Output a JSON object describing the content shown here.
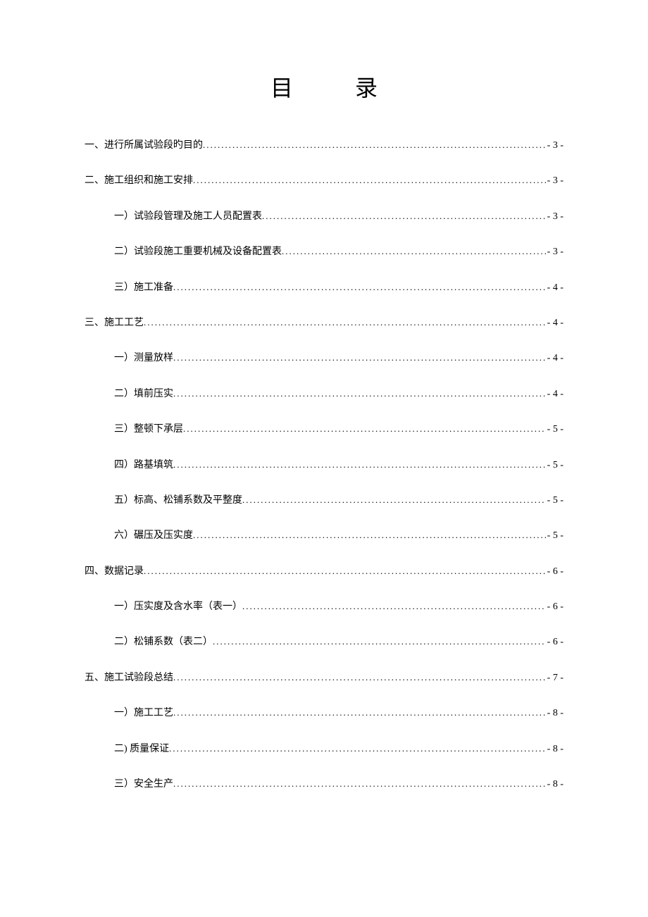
{
  "title": "目 录",
  "entries": [
    {
      "level": 1,
      "label": "一、进行所属试验段旳目的",
      "page": "- 3 -"
    },
    {
      "level": 1,
      "label": "二、施工组织和施工安排",
      "page": "- 3 -"
    },
    {
      "level": 2,
      "label": "一）试验段管理及施工人员配置表",
      "page": "- 3 -"
    },
    {
      "level": 2,
      "label": "二）试验段施工重要机械及设备配置表",
      "page": "- 3 -"
    },
    {
      "level": 2,
      "label": "三）施工准备",
      "page": "- 4 -"
    },
    {
      "level": 1,
      "label": "三、施工工艺",
      "page": "- 4 -"
    },
    {
      "level": 2,
      "label": "一）测量放样",
      "page": "- 4 -"
    },
    {
      "level": 2,
      "label": "二）填前压实",
      "page": "- 4 -"
    },
    {
      "level": 2,
      "label": "三）整顿下承层",
      "page": "- 5 -"
    },
    {
      "level": 2,
      "label": "四）路基填筑",
      "page": "- 5 -"
    },
    {
      "level": 2,
      "label": "五）标高、松铺系数及平整度",
      "page": "- 5 -"
    },
    {
      "level": 2,
      "label": "六）碾压及压实度",
      "page": "- 5 -"
    },
    {
      "level": 1,
      "label": "四、数据记录",
      "page": "- 6 -"
    },
    {
      "level": 2,
      "label": "一）压实度及含水率（表一）",
      "page": "- 6 -"
    },
    {
      "level": 2,
      "label": "二）松铺系数（表二）",
      "page": "- 6 -"
    },
    {
      "level": 1,
      "label": "五、施工试验段总结",
      "page": "- 7 -"
    },
    {
      "level": 2,
      "label": "一）施工工艺",
      "page": "- 8 -"
    },
    {
      "level": 2,
      "label": "二)  质量保证",
      "page": "- 8 -"
    },
    {
      "level": 2,
      "label": "三）安全生产",
      "page": "- 8 -"
    }
  ]
}
